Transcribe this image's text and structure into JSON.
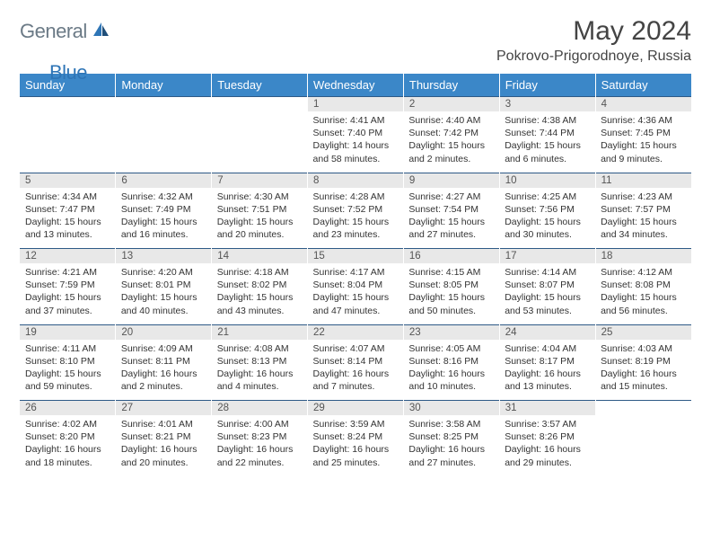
{
  "logo": {
    "general": "General",
    "blue": "Blue"
  },
  "title": "May 2024",
  "location": "Pokrovo-Prigorodnoye, Russia",
  "colors": {
    "header_bg": "#3b87c8",
    "header_text": "#ffffff",
    "row_border": "#2e5a87",
    "daynum_bg": "#e8e8e8",
    "logo_general": "#6b7a86",
    "logo_blue": "#2e75b6"
  },
  "day_headers": [
    "Sunday",
    "Monday",
    "Tuesday",
    "Wednesday",
    "Thursday",
    "Friday",
    "Saturday"
  ],
  "weeks": [
    [
      null,
      null,
      null,
      {
        "n": "1",
        "sr": "Sunrise: 4:41 AM",
        "ss": "Sunset: 7:40 PM",
        "dl": "Daylight: 14 hours and 58 minutes."
      },
      {
        "n": "2",
        "sr": "Sunrise: 4:40 AM",
        "ss": "Sunset: 7:42 PM",
        "dl": "Daylight: 15 hours and 2 minutes."
      },
      {
        "n": "3",
        "sr": "Sunrise: 4:38 AM",
        "ss": "Sunset: 7:44 PM",
        "dl": "Daylight: 15 hours and 6 minutes."
      },
      {
        "n": "4",
        "sr": "Sunrise: 4:36 AM",
        "ss": "Sunset: 7:45 PM",
        "dl": "Daylight: 15 hours and 9 minutes."
      }
    ],
    [
      {
        "n": "5",
        "sr": "Sunrise: 4:34 AM",
        "ss": "Sunset: 7:47 PM",
        "dl": "Daylight: 15 hours and 13 minutes."
      },
      {
        "n": "6",
        "sr": "Sunrise: 4:32 AM",
        "ss": "Sunset: 7:49 PM",
        "dl": "Daylight: 15 hours and 16 minutes."
      },
      {
        "n": "7",
        "sr": "Sunrise: 4:30 AM",
        "ss": "Sunset: 7:51 PM",
        "dl": "Daylight: 15 hours and 20 minutes."
      },
      {
        "n": "8",
        "sr": "Sunrise: 4:28 AM",
        "ss": "Sunset: 7:52 PM",
        "dl": "Daylight: 15 hours and 23 minutes."
      },
      {
        "n": "9",
        "sr": "Sunrise: 4:27 AM",
        "ss": "Sunset: 7:54 PM",
        "dl": "Daylight: 15 hours and 27 minutes."
      },
      {
        "n": "10",
        "sr": "Sunrise: 4:25 AM",
        "ss": "Sunset: 7:56 PM",
        "dl": "Daylight: 15 hours and 30 minutes."
      },
      {
        "n": "11",
        "sr": "Sunrise: 4:23 AM",
        "ss": "Sunset: 7:57 PM",
        "dl": "Daylight: 15 hours and 34 minutes."
      }
    ],
    [
      {
        "n": "12",
        "sr": "Sunrise: 4:21 AM",
        "ss": "Sunset: 7:59 PM",
        "dl": "Daylight: 15 hours and 37 minutes."
      },
      {
        "n": "13",
        "sr": "Sunrise: 4:20 AM",
        "ss": "Sunset: 8:01 PM",
        "dl": "Daylight: 15 hours and 40 minutes."
      },
      {
        "n": "14",
        "sr": "Sunrise: 4:18 AM",
        "ss": "Sunset: 8:02 PM",
        "dl": "Daylight: 15 hours and 43 minutes."
      },
      {
        "n": "15",
        "sr": "Sunrise: 4:17 AM",
        "ss": "Sunset: 8:04 PM",
        "dl": "Daylight: 15 hours and 47 minutes."
      },
      {
        "n": "16",
        "sr": "Sunrise: 4:15 AM",
        "ss": "Sunset: 8:05 PM",
        "dl": "Daylight: 15 hours and 50 minutes."
      },
      {
        "n": "17",
        "sr": "Sunrise: 4:14 AM",
        "ss": "Sunset: 8:07 PM",
        "dl": "Daylight: 15 hours and 53 minutes."
      },
      {
        "n": "18",
        "sr": "Sunrise: 4:12 AM",
        "ss": "Sunset: 8:08 PM",
        "dl": "Daylight: 15 hours and 56 minutes."
      }
    ],
    [
      {
        "n": "19",
        "sr": "Sunrise: 4:11 AM",
        "ss": "Sunset: 8:10 PM",
        "dl": "Daylight: 15 hours and 59 minutes."
      },
      {
        "n": "20",
        "sr": "Sunrise: 4:09 AM",
        "ss": "Sunset: 8:11 PM",
        "dl": "Daylight: 16 hours and 2 minutes."
      },
      {
        "n": "21",
        "sr": "Sunrise: 4:08 AM",
        "ss": "Sunset: 8:13 PM",
        "dl": "Daylight: 16 hours and 4 minutes."
      },
      {
        "n": "22",
        "sr": "Sunrise: 4:07 AM",
        "ss": "Sunset: 8:14 PM",
        "dl": "Daylight: 16 hours and 7 minutes."
      },
      {
        "n": "23",
        "sr": "Sunrise: 4:05 AM",
        "ss": "Sunset: 8:16 PM",
        "dl": "Daylight: 16 hours and 10 minutes."
      },
      {
        "n": "24",
        "sr": "Sunrise: 4:04 AM",
        "ss": "Sunset: 8:17 PM",
        "dl": "Daylight: 16 hours and 13 minutes."
      },
      {
        "n": "25",
        "sr": "Sunrise: 4:03 AM",
        "ss": "Sunset: 8:19 PM",
        "dl": "Daylight: 16 hours and 15 minutes."
      }
    ],
    [
      {
        "n": "26",
        "sr": "Sunrise: 4:02 AM",
        "ss": "Sunset: 8:20 PM",
        "dl": "Daylight: 16 hours and 18 minutes."
      },
      {
        "n": "27",
        "sr": "Sunrise: 4:01 AM",
        "ss": "Sunset: 8:21 PM",
        "dl": "Daylight: 16 hours and 20 minutes."
      },
      {
        "n": "28",
        "sr": "Sunrise: 4:00 AM",
        "ss": "Sunset: 8:23 PM",
        "dl": "Daylight: 16 hours and 22 minutes."
      },
      {
        "n": "29",
        "sr": "Sunrise: 3:59 AM",
        "ss": "Sunset: 8:24 PM",
        "dl": "Daylight: 16 hours and 25 minutes."
      },
      {
        "n": "30",
        "sr": "Sunrise: 3:58 AM",
        "ss": "Sunset: 8:25 PM",
        "dl": "Daylight: 16 hours and 27 minutes."
      },
      {
        "n": "31",
        "sr": "Sunrise: 3:57 AM",
        "ss": "Sunset: 8:26 PM",
        "dl": "Daylight: 16 hours and 29 minutes."
      },
      null
    ]
  ]
}
